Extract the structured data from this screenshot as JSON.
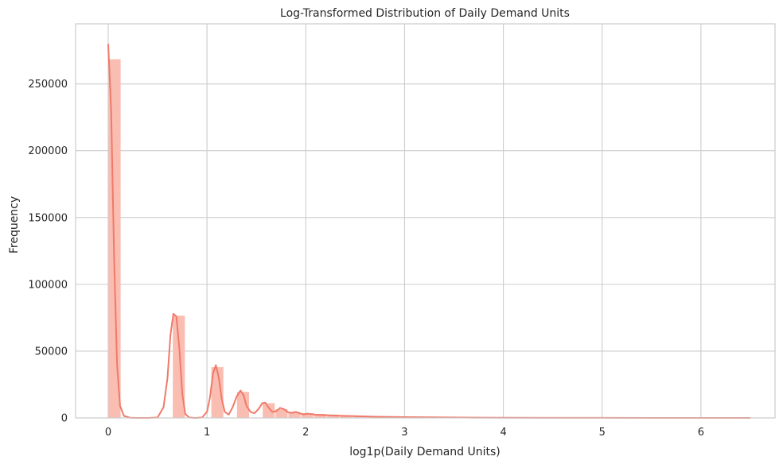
{
  "chart_data": {
    "type": "bar",
    "title": "Log-Transformed Distribution of Daily Demand Units",
    "xlabel": "log1p(Daily Demand Units)",
    "ylabel": "Frequency",
    "xlim": [
      -0.33,
      6.75
    ],
    "ylim": [
      0,
      295000
    ],
    "x_ticks": [
      0,
      1,
      2,
      3,
      4,
      5,
      6
    ],
    "y_ticks": [
      0,
      50000,
      100000,
      150000,
      200000,
      250000
    ],
    "grid": true,
    "histogram": {
      "bin_width": 0.13,
      "bins": [
        {
          "x0": 0.0,
          "x1": 0.13,
          "count": 268500
        },
        {
          "x0": 0.65,
          "x1": 0.78,
          "count": 76500
        },
        {
          "x0": 1.04,
          "x1": 1.17,
          "count": 38000
        },
        {
          "x0": 1.3,
          "x1": 1.43,
          "count": 19500
        },
        {
          "x0": 1.56,
          "x1": 1.69,
          "count": 11000
        },
        {
          "x0": 1.69,
          "x1": 1.82,
          "count": 6500
        },
        {
          "x0": 1.82,
          "x1": 1.95,
          "count": 4500
        },
        {
          "x0": 1.95,
          "x1": 2.08,
          "count": 3500
        },
        {
          "x0": 2.08,
          "x1": 2.21,
          "count": 3000
        },
        {
          "x0": 2.21,
          "x1": 2.34,
          "count": 2500
        },
        {
          "x0": 2.34,
          "x1": 2.47,
          "count": 1800
        },
        {
          "x0": 2.47,
          "x1": 2.6,
          "count": 1400
        },
        {
          "x0": 2.6,
          "x1": 2.73,
          "count": 1100
        },
        {
          "x0": 2.73,
          "x1": 2.86,
          "count": 900
        },
        {
          "x0": 2.86,
          "x1": 2.99,
          "count": 700
        },
        {
          "x0": 2.99,
          "x1": 3.12,
          "count": 550
        },
        {
          "x0": 3.12,
          "x1": 3.25,
          "count": 450
        },
        {
          "x0": 3.25,
          "x1": 3.38,
          "count": 350
        },
        {
          "x0": 3.38,
          "x1": 3.51,
          "count": 280
        },
        {
          "x0": 3.51,
          "x1": 3.64,
          "count": 220
        },
        {
          "x0": 3.64,
          "x1": 3.77,
          "count": 180
        },
        {
          "x0": 3.77,
          "x1": 3.9,
          "count": 150
        },
        {
          "x0": 3.9,
          "x1": 4.03,
          "count": 120
        }
      ]
    },
    "kde": {
      "x": [
        0.0,
        0.03,
        0.06,
        0.09,
        0.12,
        0.16,
        0.22,
        0.3,
        0.4,
        0.5,
        0.56,
        0.6,
        0.63,
        0.66,
        0.69,
        0.72,
        0.75,
        0.78,
        0.82,
        0.88,
        0.95,
        1.0,
        1.03,
        1.06,
        1.09,
        1.12,
        1.15,
        1.18,
        1.22,
        1.26,
        1.3,
        1.34,
        1.37,
        1.4,
        1.44,
        1.48,
        1.52,
        1.56,
        1.59,
        1.62,
        1.66,
        1.7,
        1.74,
        1.78,
        1.82,
        1.86,
        1.9,
        1.94,
        1.98,
        2.02,
        2.06,
        2.1,
        2.2,
        2.3,
        2.5,
        2.7,
        3.0,
        3.3,
        3.7,
        4.0,
        4.5,
        5.0,
        5.5,
        6.0,
        6.5
      ],
      "y": [
        280000,
        230000,
        120000,
        40000,
        9000,
        1500,
        200,
        0,
        0,
        300,
        8000,
        30000,
        62000,
        78000,
        76000,
        52000,
        18000,
        3000,
        300,
        0,
        300,
        4500,
        15000,
        33000,
        39500,
        30000,
        14000,
        4500,
        2500,
        8000,
        16000,
        20500,
        17000,
        9000,
        4500,
        3500,
        6500,
        11000,
        11500,
        8000,
        4500,
        5000,
        7500,
        6500,
        4200,
        3800,
        4500,
        3400,
        2600,
        3200,
        2800,
        2400,
        2100,
        1700,
        1300,
        900,
        600,
        400,
        250,
        150,
        80,
        40,
        20,
        10,
        5
      ]
    },
    "colors": {
      "bar": "#fabdb2",
      "kde": "#f07a6a",
      "grid": "#cccccc"
    }
  }
}
